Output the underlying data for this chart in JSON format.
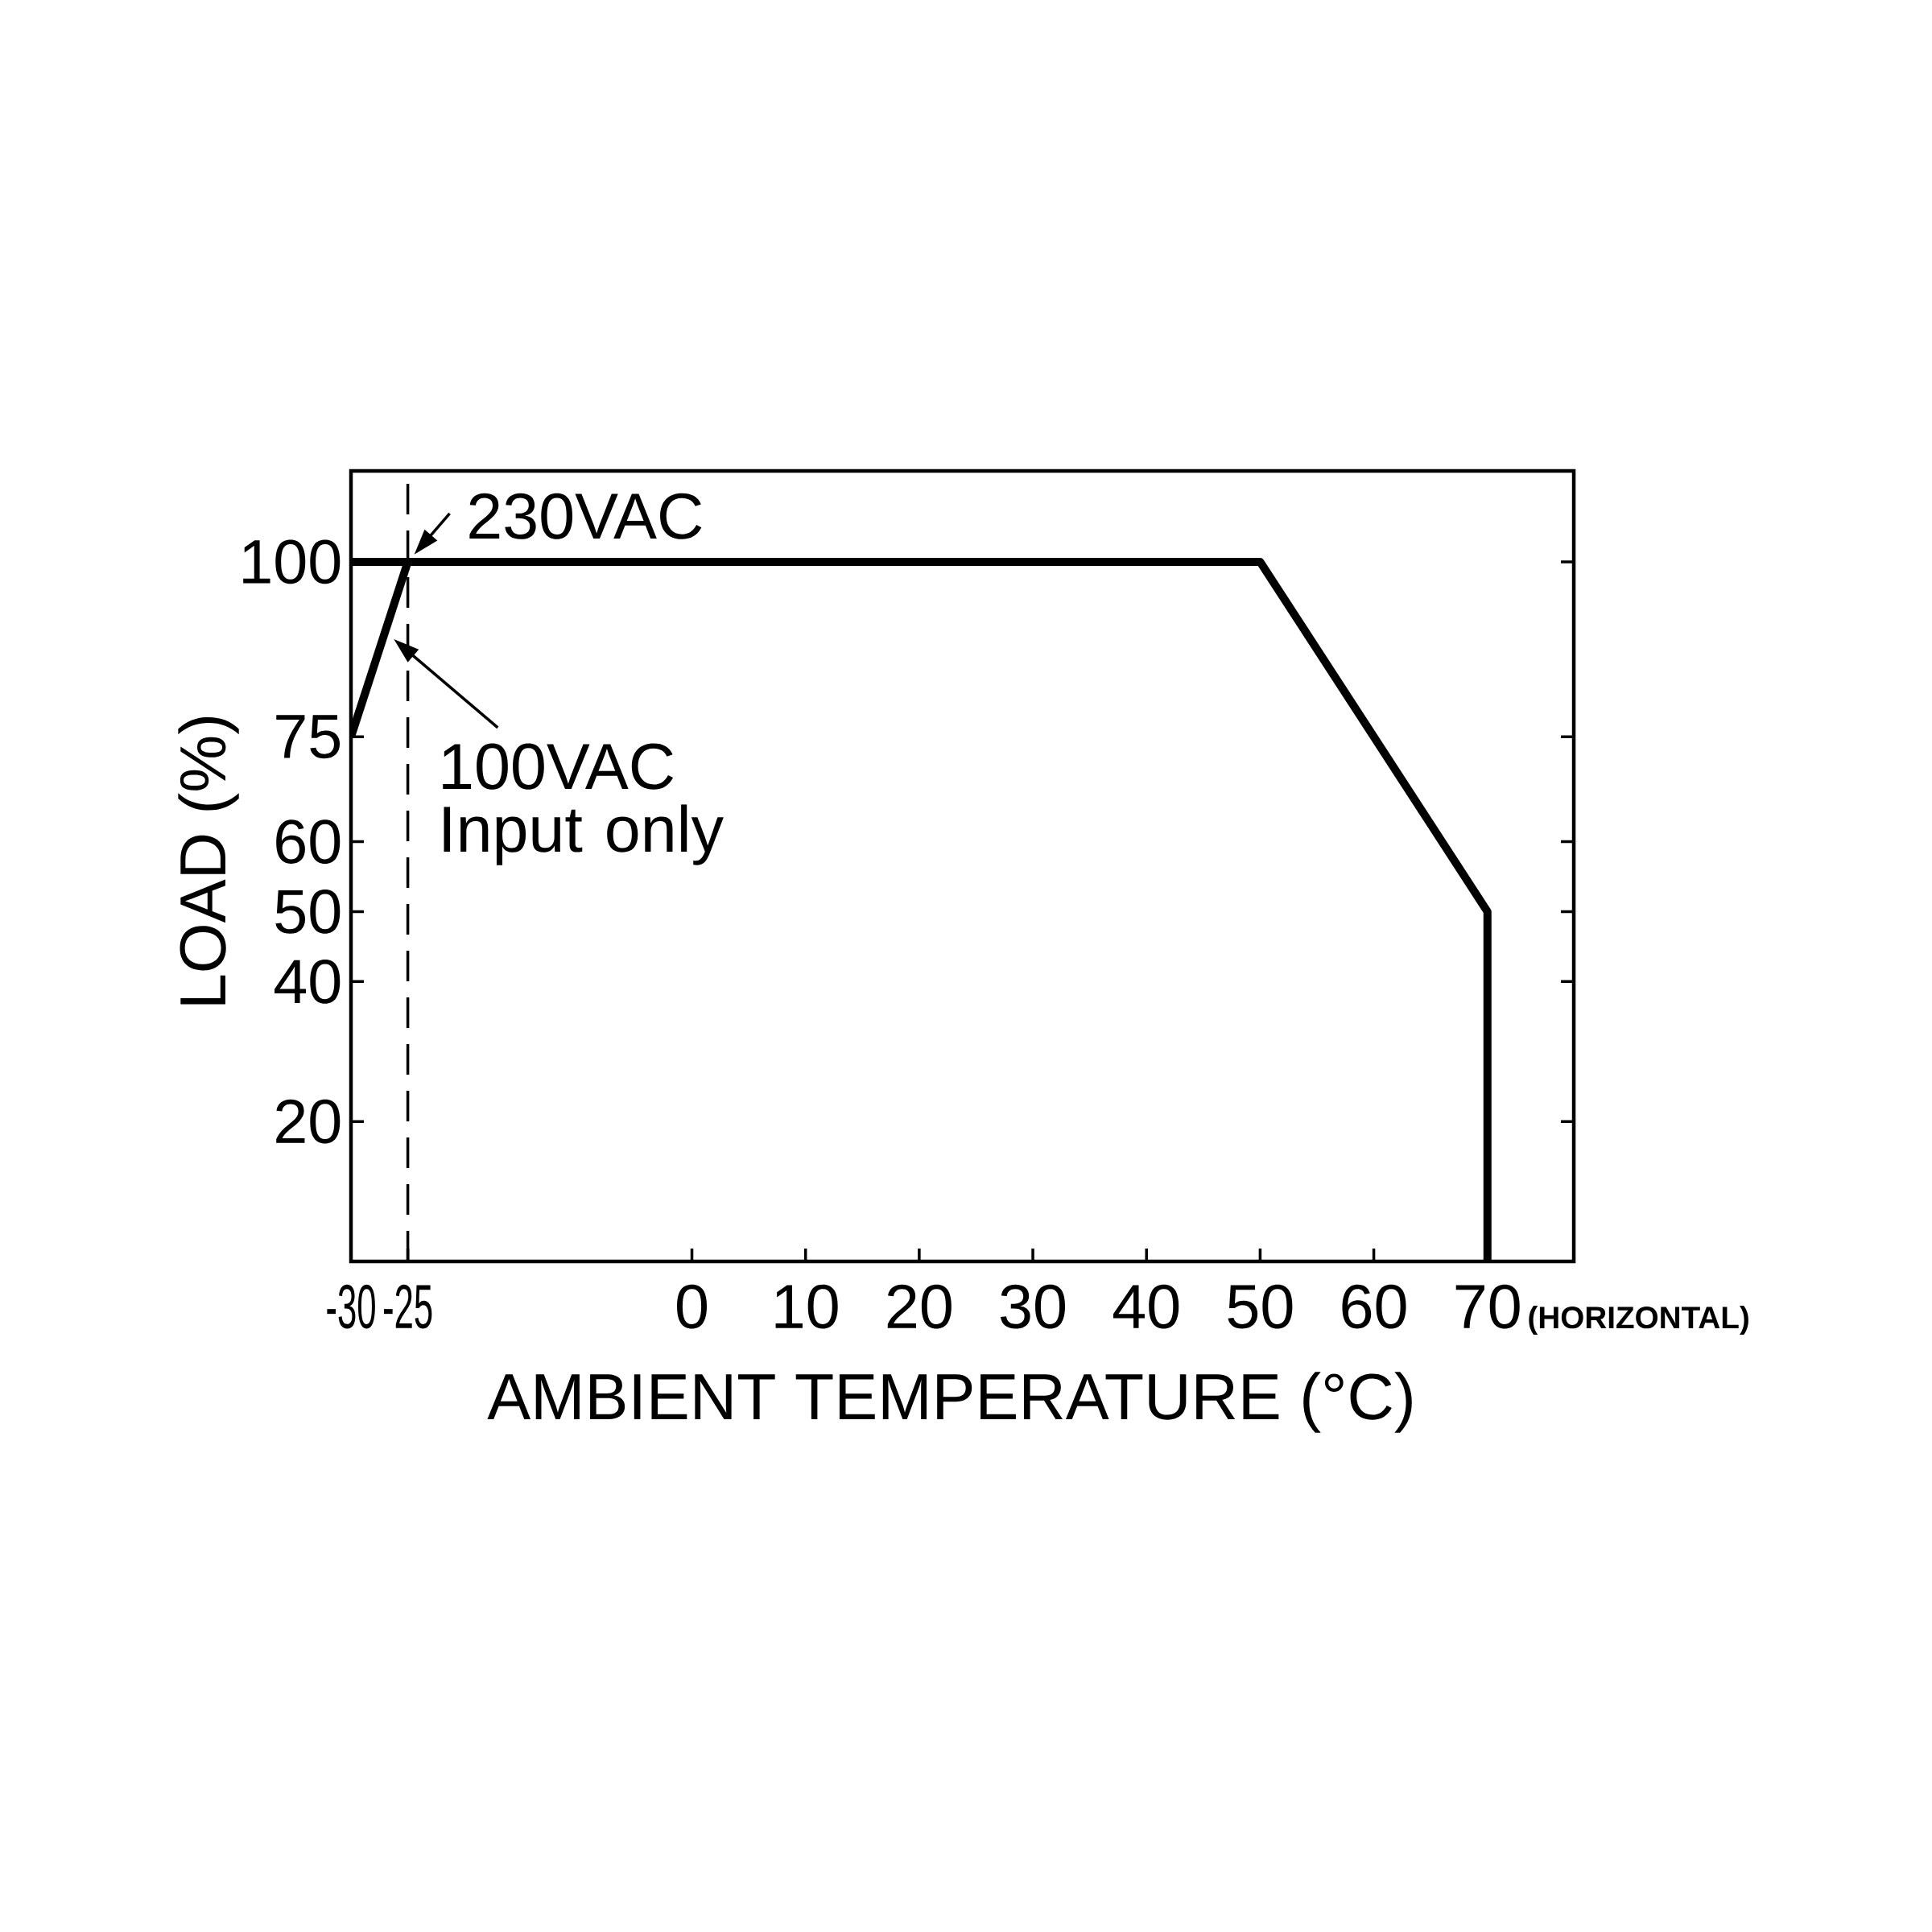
{
  "chart_data": {
    "type": "line",
    "xlabel": "AMBIENT TEMPERATURE (°C)",
    "ylabel": "LOAD (%)",
    "series": [
      {
        "color": "#000000",
        "x": [
          -30,
          50,
          70,
          70
        ],
        "values": [
          100,
          100,
          50,
          0
        ]
      },
      {
        "color": "#000000",
        "x": [
          -30,
          -25
        ],
        "values": [
          75,
          100
        ]
      }
    ],
    "xlim": [
      -30,
      77.6
    ],
    "xticks": [
      -30,
      -25,
      0,
      10,
      20,
      30,
      40,
      50,
      60,
      70
    ],
    "ylim": [
      0,
      113
    ],
    "yticks": [
      20,
      40,
      50,
      60,
      75,
      100
    ],
    "ref_lines": [
      {
        "axis": "x",
        "value": -25,
        "color": "#000000",
        "line_style": "dashed"
      }
    ],
    "annotations": [
      {
        "text": "230VAC",
        "x": -25,
        "y": 100
      },
      {
        "text": "100VAC Input only",
        "x": -27,
        "y": 90
      },
      "(HORIZONTAL)"
    ],
    "marker": "none",
    "line_style": "solid"
  }
}
